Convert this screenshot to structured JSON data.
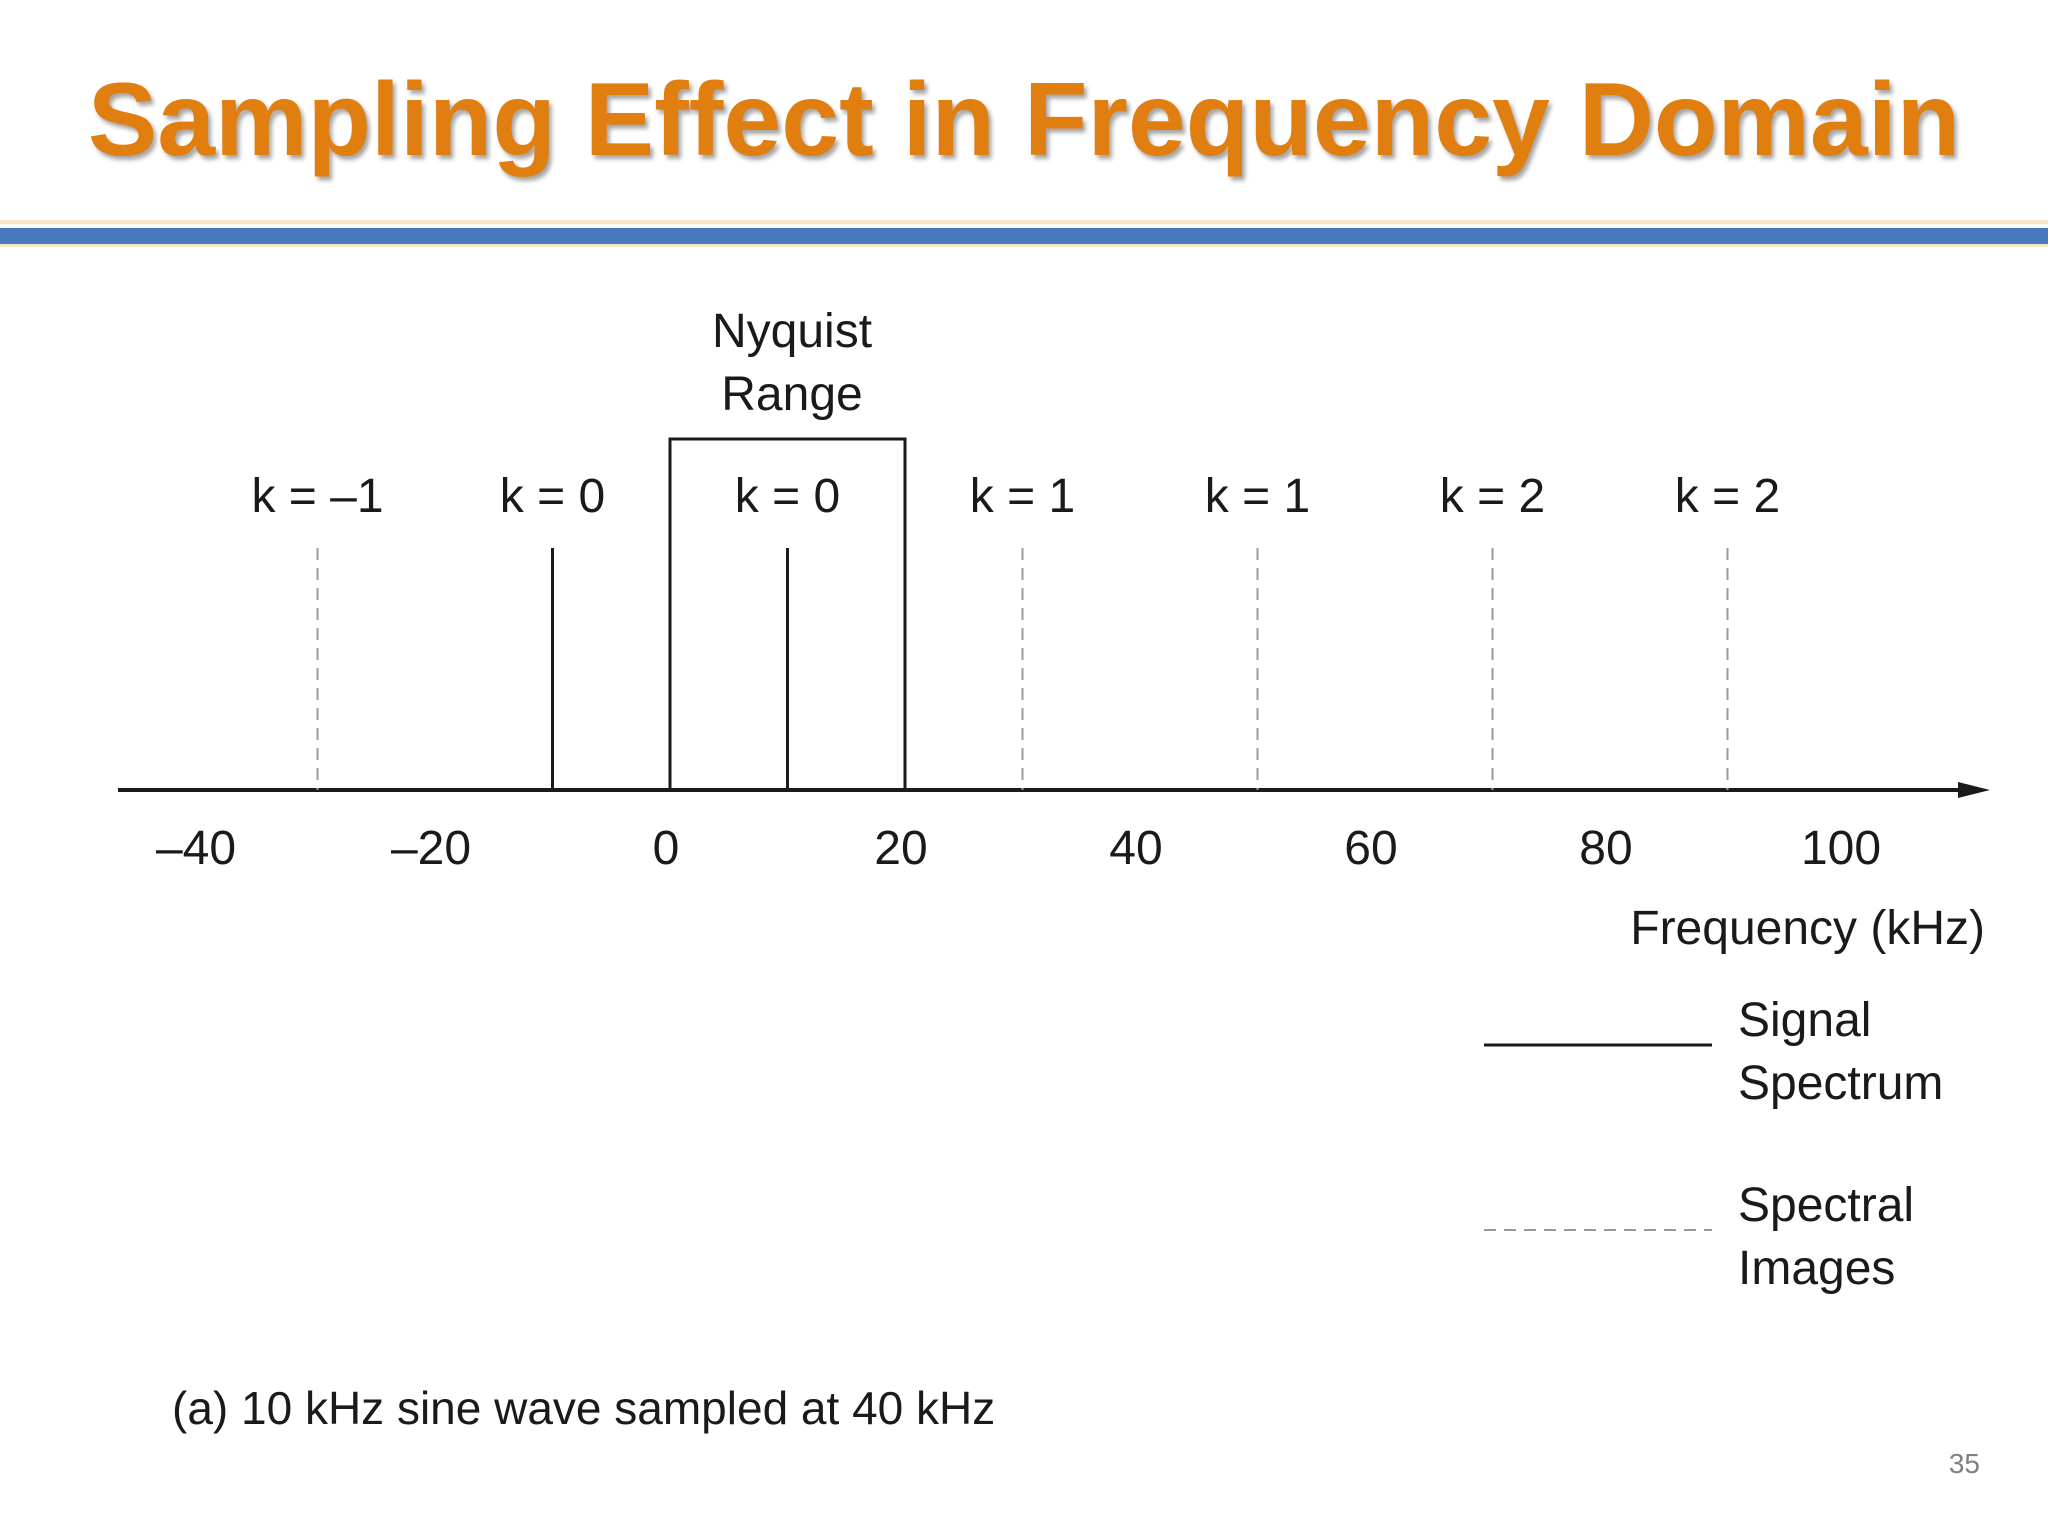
{
  "slide": {
    "title": "Sampling Effect in Frequency Domain",
    "page_number": "35"
  },
  "diagram": {
    "nyquist_label_line1": "Nyquist",
    "nyquist_label_line2": "Range",
    "nyquist_range_khz": [
      0,
      20
    ],
    "axis": {
      "label": "Frequency (kHz)",
      "ticks": [
        {
          "value": -40,
          "label": "–40"
        },
        {
          "value": -20,
          "label": "–20"
        },
        {
          "value": 0,
          "label": "0"
        },
        {
          "value": 20,
          "label": "20"
        },
        {
          "value": 40,
          "label": "40"
        },
        {
          "value": 60,
          "label": "60"
        },
        {
          "value": 80,
          "label": "80"
        },
        {
          "value": 100,
          "label": "100"
        }
      ]
    },
    "spectral_lines": [
      {
        "freq_khz": -30,
        "label": "k = –1",
        "kind": "image"
      },
      {
        "freq_khz": -10,
        "label": "k = 0",
        "kind": "signal"
      },
      {
        "freq_khz": 10,
        "label": "k = 0",
        "kind": "signal"
      },
      {
        "freq_khz": 30,
        "label": "k = 1",
        "kind": "image"
      },
      {
        "freq_khz": 50,
        "label": "k = 1",
        "kind": "image"
      },
      {
        "freq_khz": 70,
        "label": "k = 2",
        "kind": "image"
      },
      {
        "freq_khz": 90,
        "label": "k = 2",
        "kind": "image"
      }
    ],
    "legend": {
      "signal_line1": "Signal",
      "signal_line2": "Spectrum",
      "image_line1": "Spectral",
      "image_line2": "Images"
    },
    "caption": "(a) 10 kHz sine wave sampled at 40 kHz"
  }
}
